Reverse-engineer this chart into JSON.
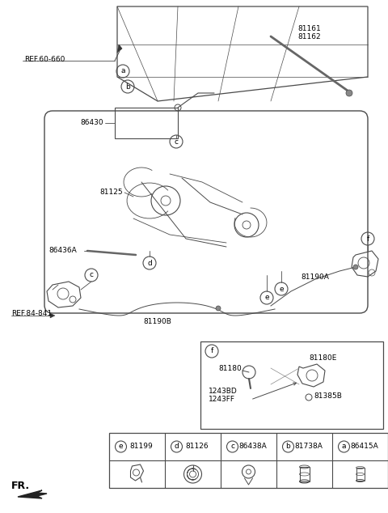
{
  "bg_color": "#ffffff",
  "line_color": "#4a4a4a",
  "text_color": "#000000",
  "labels": {
    "ref_60_660": "REF.60-660",
    "ref_84_841": "REF.84-841",
    "num_86430": "86430",
    "num_81125": "81125",
    "num_86436A": "86436A",
    "num_81190A": "81190A",
    "num_81190B": "81190B",
    "num_81161": "81161",
    "num_81162": "81162",
    "num_81180": "81180",
    "num_81180E": "81180E",
    "num_1243BD": "1243BD",
    "num_1243FF": "1243FF",
    "num_81385B": "81385B",
    "part_e_num": "81199",
    "part_d_num": "81126",
    "part_c_num": "86438A",
    "part_b_num": "81738A",
    "part_a_num": "86415A",
    "fr_label": "FR."
  }
}
